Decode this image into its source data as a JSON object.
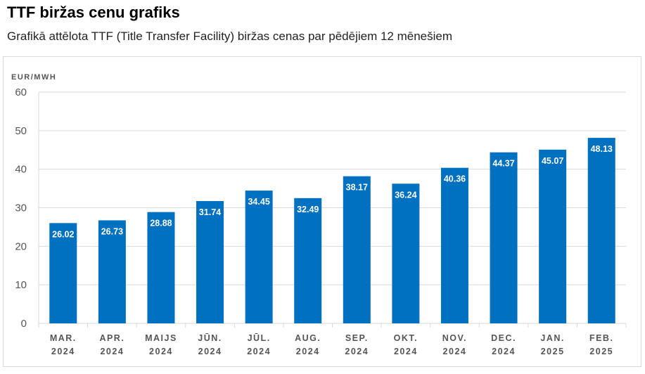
{
  "header": {
    "title": "TTF biržas cenu grafiks",
    "subtitle": "Grafikā attēlota TTF (Title Transfer Facility) biržas cenas par pēdējiem 12 mēnešiem"
  },
  "colors": {
    "bar": "#0070c0",
    "grid": "#d9d9d9",
    "axis_text": "#555555"
  },
  "chart_data": {
    "type": "bar",
    "title": "TTF biržas cenu grafiks",
    "subtitle": "Grafikā attēlota TTF (Title Transfer Facility) biržas cenas par pēdējiem 12 mēnešiem",
    "ylabel": "EUR/MWH",
    "xlabel": "",
    "ylim": [
      0,
      60
    ],
    "yticks": [
      0,
      10,
      20,
      30,
      40,
      50,
      60
    ],
    "grid": true,
    "categories": [
      [
        "MAR.",
        "2024"
      ],
      [
        "APR.",
        "2024"
      ],
      [
        "MAIJS",
        "2024"
      ],
      [
        "JŪN.",
        "2024"
      ],
      [
        "JŪL.",
        "2024"
      ],
      [
        "AUG.",
        "2024"
      ],
      [
        "SEP.",
        "2024"
      ],
      [
        "OKT.",
        "2024"
      ],
      [
        "NOV.",
        "2024"
      ],
      [
        "DEC.",
        "2024"
      ],
      [
        "JAN.",
        "2025"
      ],
      [
        "FEB.",
        "2025"
      ]
    ],
    "values": [
      26.02,
      26.73,
      28.88,
      31.74,
      34.45,
      32.49,
      38.17,
      36.24,
      40.36,
      44.37,
      45.07,
      48.13
    ],
    "data_labels": [
      "26.02",
      "26.73",
      "28.88",
      "31.74",
      "34.45",
      "32.49",
      "38.17",
      "36.24",
      "40.36",
      "44.37",
      "45.07",
      "48.13"
    ]
  }
}
